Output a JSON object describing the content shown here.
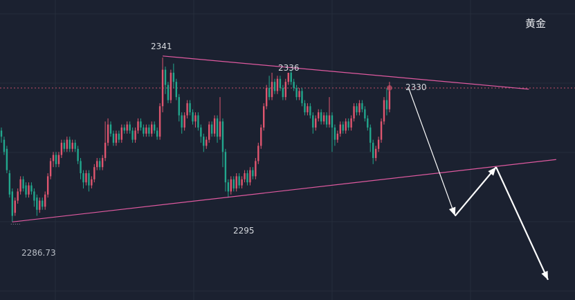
{
  "symbol": "黄金",
  "chart_data": {
    "type": "candlestick",
    "title": "",
    "ylim": [
      2278,
      2356
    ],
    "grid": true,
    "colors": {
      "up": "#e0566f",
      "down": "#22a78d",
      "trendline": "#e05aa0",
      "arrow": "#ffffff",
      "background": "#1b2130",
      "current_price_line": "#c5506a"
    },
    "current_price": 2331.0,
    "annotations": [
      {
        "label": "2341",
        "value": 2341,
        "bar_index": 59
      },
      {
        "label": "2336",
        "value": 2336,
        "bar_index": 99
      },
      {
        "label": "2330",
        "value": 2330,
        "bar_index": 145
      },
      {
        "label": "2295",
        "value": 2295,
        "bar_index": 83
      },
      {
        "label": "2286.73",
        "value": 2286.73,
        "bar_index": 4
      }
    ],
    "trendlines": [
      {
        "name": "upper",
        "from": [
          59,
          2341.5
        ],
        "to": [
          193,
          2330.6
        ]
      },
      {
        "name": "lower",
        "from": [
          4,
          2287.0
        ],
        "to": [
          203,
          2307.5
        ]
      }
    ],
    "projection": [
      [
        149,
        2331
      ],
      [
        166,
        2289
      ],
      [
        181,
        2305
      ],
      [
        200,
        2268
      ]
    ],
    "candles": [
      [
        2317,
        2315,
        2318,
        2313
      ],
      [
        2314,
        2310,
        2315,
        2309
      ],
      [
        2311,
        2304,
        2312,
        2303
      ],
      [
        2303,
        2296,
        2304,
        2295
      ],
      [
        2297,
        2289,
        2298,
        2287
      ],
      [
        2290,
        2294,
        2295,
        2289
      ],
      [
        2294,
        2297,
        2298,
        2293
      ],
      [
        2297,
        2301,
        2302,
        2296
      ],
      [
        2301,
        2298,
        2302,
        2297
      ],
      [
        2299,
        2296,
        2300,
        2295
      ],
      [
        2296,
        2299,
        2300,
        2295
      ],
      [
        2299,
        2297,
        2300,
        2296
      ],
      [
        2297,
        2294,
        2298,
        2292
      ],
      [
        2295,
        2291,
        2296,
        2289
      ],
      [
        2291,
        2294,
        2295,
        2290
      ],
      [
        2294,
        2292,
        2295,
        2291
      ],
      [
        2292,
        2296,
        2297,
        2291
      ],
      [
        2296,
        2302,
        2303,
        2295
      ],
      [
        2302,
        2307,
        2308,
        2301
      ],
      [
        2307,
        2309,
        2310,
        2305
      ],
      [
        2309,
        2306,
        2310,
        2305
      ],
      [
        2306,
        2309,
        2310,
        2305
      ],
      [
        2309,
        2313,
        2314,
        2308
      ],
      [
        2313,
        2311,
        2314,
        2310
      ],
      [
        2311,
        2314,
        2315,
        2310
      ],
      [
        2314,
        2311,
        2315,
        2310
      ],
      [
        2311,
        2313,
        2314,
        2310
      ],
      [
        2313,
        2311,
        2314,
        2310
      ],
      [
        2311,
        2307,
        2312,
        2306
      ],
      [
        2307,
        2303,
        2308,
        2301
      ],
      [
        2303,
        2300,
        2304,
        2298
      ],
      [
        2300,
        2303,
        2304,
        2299
      ],
      [
        2303,
        2299,
        2304,
        2297
      ],
      [
        2299,
        2301,
        2302,
        2298
      ],
      [
        2301,
        2305,
        2306,
        2300
      ],
      [
        2305,
        2307,
        2308,
        2304
      ],
      [
        2307,
        2305,
        2308,
        2304
      ],
      [
        2305,
        2308,
        2309,
        2304
      ],
      [
        2308,
        2313,
        2320,
        2307
      ],
      [
        2313,
        2319,
        2321,
        2312
      ],
      [
        2319,
        2316,
        2320,
        2315
      ],
      [
        2316,
        2313,
        2317,
        2312
      ],
      [
        2313,
        2316,
        2317,
        2312
      ],
      [
        2316,
        2314,
        2317,
        2313
      ],
      [
        2314,
        2318,
        2319,
        2313
      ],
      [
        2318,
        2317,
        2319,
        2316
      ],
      [
        2317,
        2319,
        2320,
        2316
      ],
      [
        2319,
        2317,
        2320,
        2316
      ],
      [
        2317,
        2314,
        2318,
        2313
      ],
      [
        2314,
        2317,
        2318,
        2313
      ],
      [
        2317,
        2320,
        2321,
        2316
      ],
      [
        2320,
        2318,
        2321,
        2317
      ],
      [
        2318,
        2316,
        2319,
        2315
      ],
      [
        2316,
        2318,
        2319,
        2315
      ],
      [
        2318,
        2316,
        2319,
        2315
      ],
      [
        2316,
        2319,
        2320,
        2315
      ],
      [
        2319,
        2317,
        2320,
        2316
      ],
      [
        2317,
        2315,
        2318,
        2314
      ],
      [
        2315,
        2325,
        2326,
        2314
      ],
      [
        2325,
        2337,
        2341,
        2323
      ],
      [
        2337,
        2332,
        2338,
        2329
      ],
      [
        2332,
        2327,
        2333,
        2326
      ],
      [
        2327,
        2336,
        2337,
        2326
      ],
      [
        2336,
        2333,
        2339,
        2331
      ],
      [
        2333,
        2328,
        2334,
        2327
      ],
      [
        2328,
        2322,
        2329,
        2320
      ],
      [
        2322,
        2318,
        2323,
        2316
      ],
      [
        2318,
        2322,
        2323,
        2317
      ],
      [
        2322,
        2326,
        2327,
        2321
      ],
      [
        2326,
        2323,
        2327,
        2322
      ],
      [
        2323,
        2320,
        2324,
        2319
      ],
      [
        2320,
        2322,
        2323,
        2318
      ],
      [
        2322,
        2318,
        2323,
        2317
      ],
      [
        2318,
        2315,
        2319,
        2313
      ],
      [
        2315,
        2312,
        2316,
        2310
      ],
      [
        2312,
        2314,
        2315,
        2311
      ],
      [
        2314,
        2319,
        2320,
        2313
      ],
      [
        2319,
        2316,
        2320,
        2315
      ],
      [
        2316,
        2321,
        2322,
        2315
      ],
      [
        2321,
        2315,
        2322,
        2313
      ],
      [
        2315,
        2320,
        2328,
        2314
      ],
      [
        2320,
        2310,
        2321,
        2305
      ],
      [
        2310,
        2300,
        2311,
        2297
      ],
      [
        2300,
        2297,
        2301,
        2295
      ],
      [
        2297,
        2301,
        2302,
        2296
      ],
      [
        2301,
        2298,
        2302,
        2297
      ],
      [
        2298,
        2302,
        2303,
        2297
      ],
      [
        2302,
        2299,
        2303,
        2298
      ],
      [
        2299,
        2301,
        2302,
        2298
      ],
      [
        2301,
        2303,
        2304,
        2300
      ],
      [
        2303,
        2300,
        2304,
        2299
      ],
      [
        2300,
        2304,
        2305,
        2299
      ],
      [
        2304,
        2302,
        2305,
        2301
      ],
      [
        2302,
        2307,
        2308,
        2301
      ],
      [
        2307,
        2312,
        2313,
        2306
      ],
      [
        2312,
        2318,
        2319,
        2311
      ],
      [
        2318,
        2325,
        2326,
        2317
      ],
      [
        2325,
        2331,
        2332,
        2324
      ],
      [
        2331,
        2328,
        2335,
        2327
      ],
      [
        2328,
        2333,
        2336,
        2327
      ],
      [
        2333,
        2330,
        2334,
        2329
      ],
      [
        2330,
        2334,
        2335,
        2329
      ],
      [
        2334,
        2331,
        2335,
        2330
      ],
      [
        2331,
        2328,
        2332,
        2327
      ],
      [
        2328,
        2333,
        2334,
        2327
      ],
      [
        2333,
        2336,
        2336,
        2332
      ],
      [
        2336,
        2333,
        2337,
        2332
      ],
      [
        2333,
        2331,
        2334,
        2330
      ],
      [
        2331,
        2328,
        2332,
        2327
      ],
      [
        2328,
        2330,
        2331,
        2327
      ],
      [
        2330,
        2326,
        2331,
        2325
      ],
      [
        2326,
        2323,
        2327,
        2322
      ],
      [
        2323,
        2325,
        2326,
        2322
      ],
      [
        2325,
        2322,
        2326,
        2321
      ],
      [
        2322,
        2318,
        2323,
        2316
      ],
      [
        2318,
        2321,
        2322,
        2317
      ],
      [
        2321,
        2323,
        2324,
        2320
      ],
      [
        2323,
        2320,
        2324,
        2319
      ],
      [
        2320,
        2322,
        2323,
        2319
      ],
      [
        2322,
        2319,
        2323,
        2318
      ],
      [
        2319,
        2322,
        2328,
        2318
      ],
      [
        2322,
        2318,
        2323,
        2310
      ],
      [
        2318,
        2314,
        2319,
        2312
      ],
      [
        2314,
        2316,
        2317,
        2313
      ],
      [
        2316,
        2319,
        2320,
        2315
      ],
      [
        2319,
        2317,
        2320,
        2316
      ],
      [
        2317,
        2320,
        2321,
        2316
      ],
      [
        2320,
        2318,
        2321,
        2317
      ],
      [
        2318,
        2321,
        2322,
        2317
      ],
      [
        2321,
        2325,
        2326,
        2320
      ],
      [
        2325,
        2323,
        2326,
        2322
      ],
      [
        2323,
        2326,
        2327,
        2322
      ],
      [
        2326,
        2324,
        2327,
        2323
      ],
      [
        2324,
        2321,
        2325,
        2320
      ],
      [
        2321,
        2318,
        2322,
        2317
      ],
      [
        2318,
        2313,
        2319,
        2310
      ],
      [
        2313,
        2308,
        2314,
        2306
      ],
      [
        2308,
        2311,
        2312,
        2307
      ],
      [
        2311,
        2314,
        2315,
        2310
      ],
      [
        2314,
        2320,
        2321,
        2313
      ],
      [
        2320,
        2327,
        2328,
        2319
      ],
      [
        2327,
        2324,
        2331,
        2322
      ],
      [
        2324,
        2330,
        2333,
        2323
      ]
    ]
  }
}
